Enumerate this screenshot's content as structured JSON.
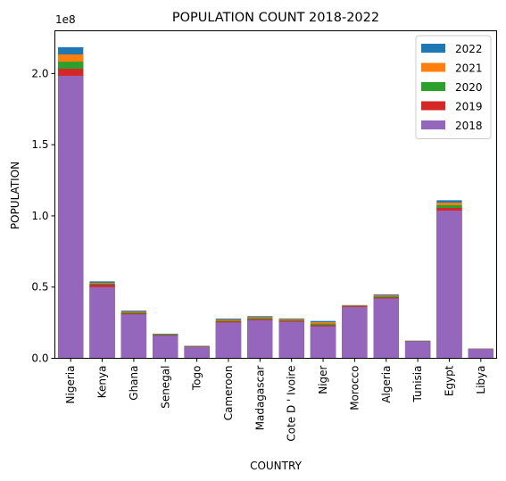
{
  "chart_data": {
    "type": "bar",
    "stacked_overlay": true,
    "title": "POPULATION COUNT 2018-2022",
    "xlabel": "COUNTRY",
    "ylabel": "POPULATION",
    "y_multiplier_label": "1e8",
    "ylim": [
      0,
      230000000
    ],
    "yticks": [
      0,
      50000000,
      100000000,
      150000000,
      200000000
    ],
    "ytick_labels": [
      "0.0",
      "0.5",
      "1.0",
      "1.5",
      "2.0"
    ],
    "grid": false,
    "legend_position": "top-right",
    "categories": [
      "Nigeria",
      "Kenya",
      "Ghana",
      "Senegal",
      "Togo",
      "Cameroon",
      "Madagascar",
      "Cote D ' Ivoire",
      "Niger",
      "Morocco",
      "Algeria",
      "Tunisia",
      "Egypt",
      "Libya"
    ],
    "series": [
      {
        "name": "2022",
        "color": "#1f77b4",
        "values": [
          218500000,
          54000000,
          33500000,
          17300000,
          8800000,
          27900000,
          29600000,
          28000000,
          26200000,
          37400000,
          44900000,
          12400000,
          111000000,
          6800000
        ]
      },
      {
        "name": "2021",
        "color": "#ff7f0e",
        "values": [
          213400000,
          53000000,
          32800000,
          16900000,
          8600000,
          27200000,
          28900000,
          27500000,
          25300000,
          37100000,
          44200000,
          12300000,
          109300000,
          6700000
        ]
      },
      {
        "name": "2020",
        "color": "#2ca02c",
        "values": [
          208300000,
          52500000,
          32200000,
          16700000,
          8400000,
          26500000,
          28200000,
          26800000,
          24300000,
          36700000,
          43500000,
          12200000,
          107500000,
          6700000
        ]
      },
      {
        "name": "2019",
        "color": "#d62728",
        "values": [
          203300000,
          51900000,
          31500000,
          16300000,
          8200000,
          25900000,
          27500000,
          26300000,
          23300000,
          36500000,
          42700000,
          12000000,
          105600000,
          6700000
        ]
      },
      {
        "name": "2018",
        "color": "#9467bd",
        "values": [
          198400000,
          50000000,
          30900000,
          15900000,
          8000000,
          25200000,
          26800000,
          25700000,
          22400000,
          36000000,
          42000000,
          11900000,
          103700000,
          6600000
        ]
      }
    ]
  }
}
